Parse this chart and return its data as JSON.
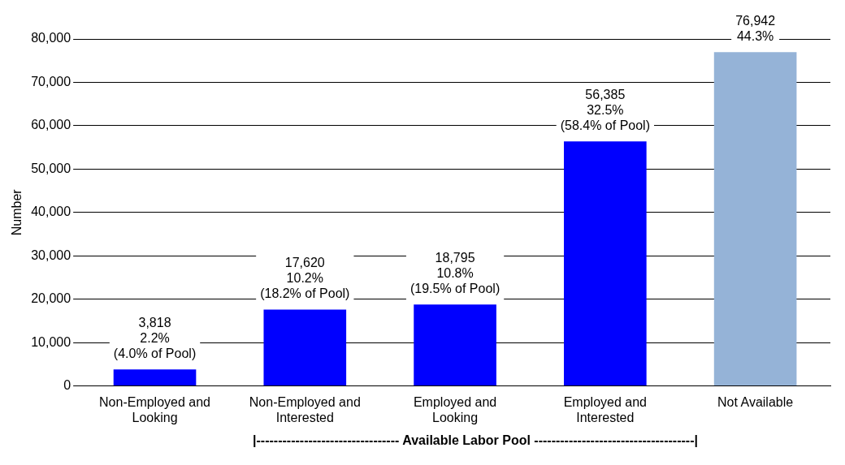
{
  "chart_data": {
    "type": "bar",
    "ylabel": "Number",
    "categories": [
      "Non-Employed and Looking",
      "Non-Employed and Interested",
      "Employed and Looking",
      "Employed and Interested",
      "Not Available"
    ],
    "values": [
      3818,
      17620,
      18795,
      56385,
      76942
    ],
    "colors": [
      "#0000ff",
      "#0000ff",
      "#0000ff",
      "#0000ff",
      "#95b3d7"
    ],
    "value_labels": [
      "3,818\n2.2%\n(4.0% of Pool)",
      "17,620\n10.2%\n(18.2% of Pool)",
      "18,795\n10.8%\n(19.5% of Pool)",
      "56,385\n32.5%\n(58.4% of Pool)",
      "76,942\n44.3%"
    ],
    "ylim": [
      0,
      80000
    ],
    "yticks": [
      {
        "value": 0,
        "label": "0"
      },
      {
        "value": 10000,
        "label": "10,000"
      },
      {
        "value": 20000,
        "label": "20,000"
      },
      {
        "value": 30000,
        "label": "30,000"
      },
      {
        "value": 40000,
        "label": "40,000"
      },
      {
        "value": 50000,
        "label": "50,000"
      },
      {
        "value": 60000,
        "label": "60,000"
      },
      {
        "value": 70000,
        "label": "70,000"
      },
      {
        "value": 80000,
        "label": "80,000"
      }
    ],
    "grid": "y",
    "legend": false,
    "annotations": [
      "|--------------------------------- Available Labor Pool -------------------------------------|"
    ]
  }
}
